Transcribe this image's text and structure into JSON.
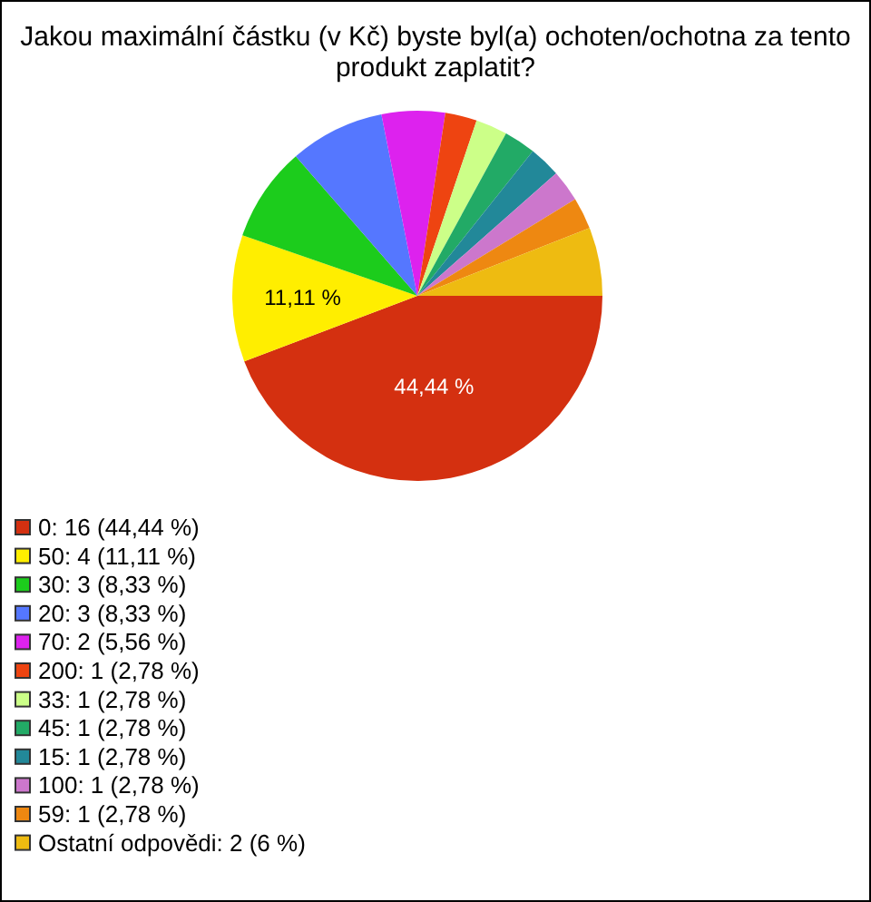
{
  "chart_data": {
    "type": "pie",
    "title": "Jakou maximální částku (v Kč) byste byl(a) ochoten/ochotna za tento produkt zaplatit?",
    "categories": [
      "0: 16 (44,44 %)",
      "50: 4 (11,11 %)",
      "30: 3 (8,33 %)",
      "20: 3 (8,33 %)",
      "70: 2 (5,56 %)",
      "200: 1 (2,78 %)",
      "33: 1 (2,78 %)",
      "45: 1 (2,78 %)",
      "15: 1 (2,78 %)",
      "100: 1 (2,78 %)",
      "59: 1 (2,78 %)",
      "Ostatní odpovědi: 2 (6 %)"
    ],
    "values": [
      44.44,
      11.11,
      8.33,
      8.33,
      5.56,
      2.78,
      2.78,
      2.78,
      2.78,
      2.78,
      2.78,
      6
    ],
    "colors": [
      "#d43010",
      "#ffee00",
      "#1ccc1c",
      "#5577ff",
      "#dd22ee",
      "#ee4411",
      "#ccff88",
      "#22aa66",
      "#228899",
      "#cc77cc",
      "#ee8811",
      "#eebb11"
    ],
    "value_labels": [
      "44,44 %",
      "11,11 %",
      null,
      null,
      null,
      null,
      null,
      null,
      null,
      null,
      null,
      null
    ],
    "legend": "bottom left"
  }
}
